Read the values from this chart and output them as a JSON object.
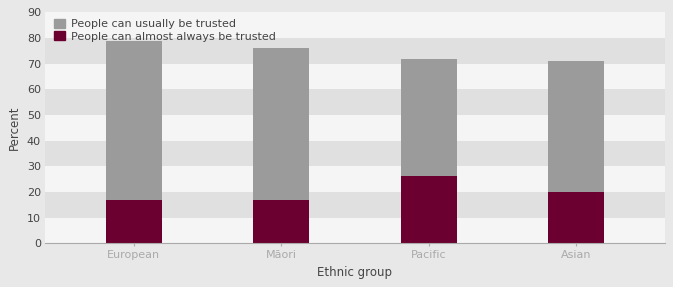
{
  "categories": [
    "European",
    "Māori",
    "Pacific",
    "Asian"
  ],
  "total_values": [
    79,
    76,
    72,
    71
  ],
  "always_values": [
    17,
    17,
    26,
    20
  ],
  "color_usually": "#9b9b9b",
  "color_always": "#6b0030",
  "xlabel": "Ethnic group",
  "ylabel": "Percent",
  "legend_usually": "People can usually be trusted",
  "legend_always": "People can almost always be trusted",
  "ylim": [
    0,
    90
  ],
  "yticks": [
    0,
    10,
    20,
    30,
    40,
    50,
    60,
    70,
    80,
    90
  ],
  "bar_width": 0.38,
  "background_color": "#e8e8e8",
  "stripe_light": "#f5f5f5",
  "stripe_dark": "#e0e0e0",
  "legend_fontsize": 8.0,
  "axis_fontsize": 8.5,
  "tick_fontsize": 8.0,
  "spine_color": "#aaaaaa"
}
